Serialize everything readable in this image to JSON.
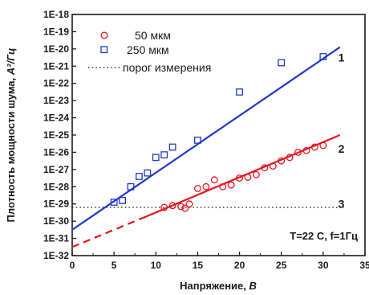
{
  "chart_data": {
    "type": "scatter",
    "xlabel_main": "Напряжение, ",
    "xlabel_unit": "В",
    "ylabel_main": "Плотность мощности шума, ",
    "ylabel_unit": "А²/Гц",
    "x_range": [
      0,
      35
    ],
    "x_ticks": [
      0,
      5,
      10,
      15,
      20,
      25,
      30,
      35
    ],
    "x_tick_labels": [
      "0",
      "5",
      "10",
      "15",
      "20",
      "25",
      "30",
      "35"
    ],
    "y_scale": "log",
    "y_range_exp": [
      -32,
      -18
    ],
    "y_ticks_exp": [
      -32,
      -31,
      -30,
      -29,
      -28,
      -27,
      -26,
      -25,
      -24,
      -23,
      -22,
      -21,
      -20,
      -19,
      -18
    ],
    "y_tick_labels": [
      "1E-32",
      "1E-31",
      "1E-30",
      "1E-29",
      "1E-28",
      "1E-27",
      "1E-26",
      "1E-25",
      "1E-24",
      "1E-23",
      "1E-22",
      "1E-21",
      "1E-20",
      "1E-19",
      "1E-18"
    ],
    "series": [
      {
        "name": "50 мкм",
        "marker": "circle",
        "color": "#e8141c",
        "points": [
          [
            11,
            -29.2
          ],
          [
            12,
            -29.1
          ],
          [
            13,
            -29.15
          ],
          [
            13.5,
            -29.25
          ],
          [
            14,
            -29.0
          ],
          [
            15,
            -28.1
          ],
          [
            16,
            -28.0
          ],
          [
            17,
            -27.6
          ],
          [
            18,
            -28.0
          ],
          [
            19,
            -27.9
          ],
          [
            20,
            -27.5
          ],
          [
            21,
            -27.45
          ],
          [
            22,
            -27.3
          ],
          [
            23,
            -26.9
          ],
          [
            24,
            -26.8
          ],
          [
            25,
            -26.5
          ],
          [
            26,
            -26.3
          ],
          [
            27,
            -26.0
          ],
          [
            28,
            -25.9
          ],
          [
            29,
            -25.7
          ],
          [
            30,
            -25.6
          ]
        ]
      },
      {
        "name": "250 мкм",
        "marker": "square",
        "color": "#1f37c8",
        "points": [
          [
            5,
            -28.9
          ],
          [
            6,
            -28.8
          ],
          [
            7,
            -28.0
          ],
          [
            8,
            -27.4
          ],
          [
            9,
            -27.2
          ],
          [
            10,
            -26.3
          ],
          [
            11,
            -26.15
          ],
          [
            12,
            -25.7
          ],
          [
            15,
            -25.3
          ],
          [
            20,
            -22.5
          ],
          [
            25,
            -20.8
          ],
          [
            30,
            -20.45
          ]
        ]
      },
      {
        "name": "порог измерения",
        "marker": "dotted-line",
        "color": "#333333",
        "y_exp": -29.2,
        "x_range": [
          0,
          32.5
        ]
      }
    ],
    "fits": [
      {
        "label": "1",
        "color": "#1f37c8",
        "style": "solid",
        "from": [
          0,
          -30.5
        ],
        "to": [
          32,
          -19.9
        ]
      },
      {
        "label": "2",
        "color": "#e8141c",
        "style": "dashed",
        "from": [
          0,
          -31.5
        ],
        "to": [
          8.5,
          -29.8
        ]
      },
      {
        "label": "2",
        "color": "#e8141c",
        "style": "solid",
        "from": [
          8.5,
          -29.8
        ],
        "to": [
          32,
          -25.0
        ]
      }
    ],
    "curve_labels": [
      {
        "text": "1",
        "x": 31.8,
        "y_exp": -20.5
      },
      {
        "text": "2",
        "x": 31.8,
        "y_exp": -25.8
      },
      {
        "text": "3",
        "x": 31.8,
        "y_exp": -29.0
      }
    ],
    "annotation": "T=22 С, f=1Гц",
    "legend_position": "top-left",
    "grid": false
  }
}
